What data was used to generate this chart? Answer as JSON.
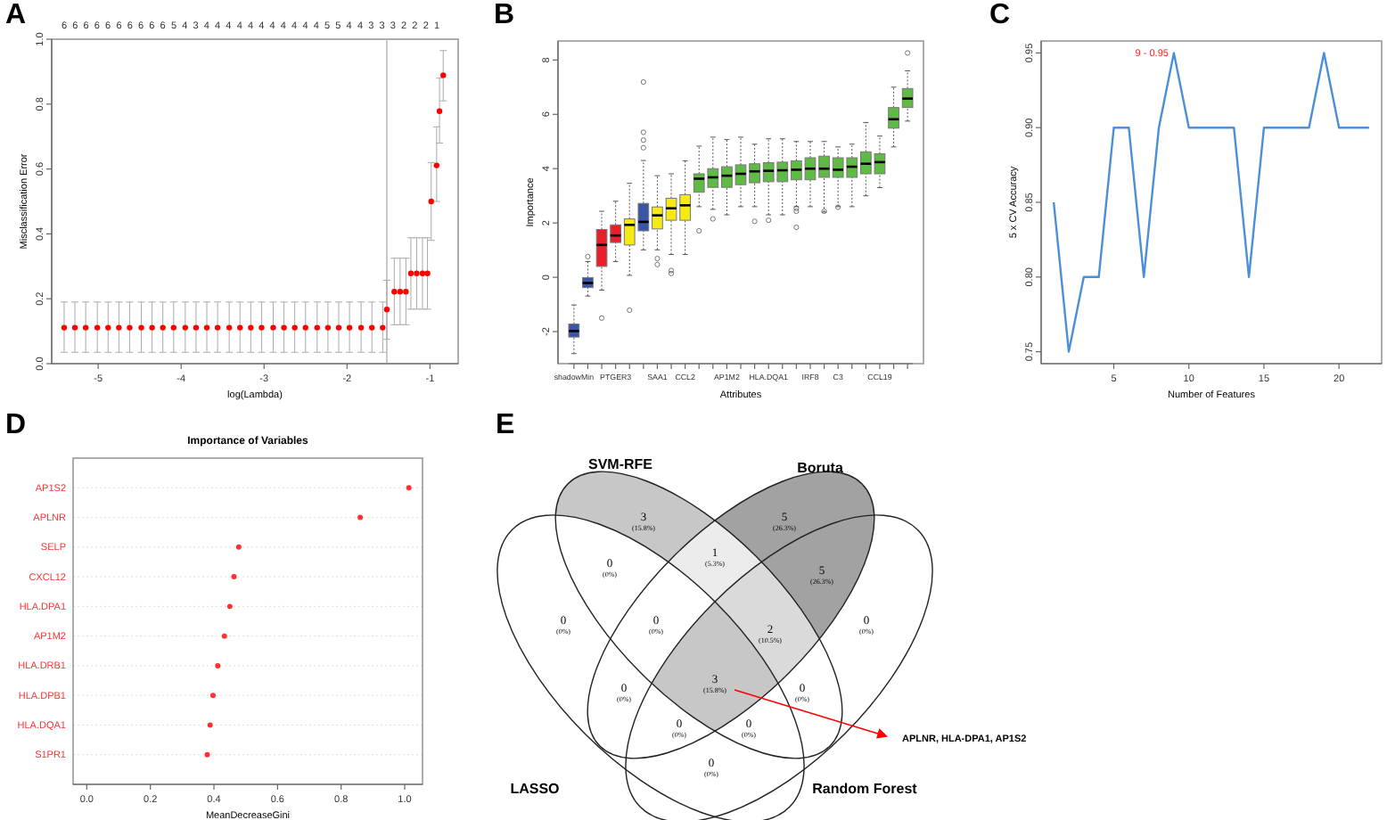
{
  "chart_data": [
    {
      "type": "scatter",
      "annotations": [
        "A",
        "6",
        "6",
        "6",
        "6",
        "6",
        "6",
        "6",
        "6",
        "6",
        "6",
        "5",
        "4",
        "3",
        "4",
        "4",
        "4",
        "4",
        "4",
        "4",
        "4",
        "4",
        "4",
        "4",
        "4",
        "5",
        "5",
        "4",
        "4",
        "3",
        "3",
        "3",
        "2",
        "2",
        "2",
        "1"
      ],
      "xlabel": "log(Lambda)",
      "ylabel": "Misclassification Error",
      "color": "#ff0000",
      "marker": "circle",
      "x": [
        -5.41,
        -5.28,
        -5.15,
        -5.01,
        -4.88,
        -4.75,
        -4.62,
        -4.48,
        -4.35,
        -4.22,
        -4.09,
        -3.95,
        -3.82,
        -3.69,
        -3.56,
        -3.42,
        -3.29,
        -3.16,
        -3.03,
        -2.89,
        -2.76,
        -2.63,
        -2.5,
        -2.36,
        -2.23,
        -2.1,
        -1.97,
        -1.83,
        -1.7,
        -1.57,
        -1.52,
        -1.43,
        -1.36,
        -1.29,
        -1.23,
        -1.16,
        -1.09,
        -1.03,
        -0.985,
        -0.92,
        -0.885,
        -0.84
      ],
      "values": [
        0.111,
        0.111,
        0.111,
        0.111,
        0.111,
        0.111,
        0.111,
        0.111,
        0.111,
        0.111,
        0.111,
        0.111,
        0.111,
        0.111,
        0.111,
        0.111,
        0.111,
        0.111,
        0.111,
        0.111,
        0.111,
        0.111,
        0.111,
        0.111,
        0.111,
        0.111,
        0.111,
        0.111,
        0.111,
        0.111,
        0.167,
        0.222,
        0.222,
        0.222,
        0.278,
        0.278,
        0.278,
        0.278,
        0.5,
        0.611,
        0.778,
        0.889
      ],
      "errors": [
        [
          0.035,
          0.19
        ],
        [
          0.035,
          0.19
        ],
        [
          0.035,
          0.19
        ],
        [
          0.035,
          0.19
        ],
        [
          0.035,
          0.19
        ],
        [
          0.035,
          0.19
        ],
        [
          0.035,
          0.19
        ],
        [
          0.035,
          0.19
        ],
        [
          0.035,
          0.19
        ],
        [
          0.035,
          0.19
        ],
        [
          0.035,
          0.19
        ],
        [
          0.035,
          0.19
        ],
        [
          0.035,
          0.19
        ],
        [
          0.035,
          0.19
        ],
        [
          0.035,
          0.19
        ],
        [
          0.035,
          0.19
        ],
        [
          0.035,
          0.19
        ],
        [
          0.035,
          0.19
        ],
        [
          0.035,
          0.19
        ],
        [
          0.035,
          0.19
        ],
        [
          0.035,
          0.19
        ],
        [
          0.035,
          0.19
        ],
        [
          0.035,
          0.19
        ],
        [
          0.035,
          0.19
        ],
        [
          0.035,
          0.19
        ],
        [
          0.035,
          0.19
        ],
        [
          0.035,
          0.19
        ],
        [
          0.035,
          0.19
        ],
        [
          0.035,
          0.19
        ],
        [
          0.035,
          0.19
        ],
        [
          0.075,
          0.257
        ],
        [
          0.12,
          0.325
        ],
        [
          0.12,
          0.325
        ],
        [
          0.12,
          0.325
        ],
        [
          0.168,
          0.388
        ],
        [
          0.168,
          0.388
        ],
        [
          0.168,
          0.388
        ],
        [
          0.168,
          0.388
        ],
        [
          0.38,
          0.62
        ],
        [
          0.5,
          0.73
        ],
        [
          0.68,
          0.88
        ],
        [
          0.81,
          0.965
        ]
      ],
      "xlim": [
        -5.56,
        -0.66
      ],
      "ylim": [
        0,
        1
      ],
      "xticks": [
        -5,
        -4,
        -3,
        -2,
        -1
      ],
      "yticks": [
        {
          "value": 0,
          "label": "0.0"
        },
        {
          "value": 0.2,
          "label": "0.2"
        },
        {
          "value": 0.4,
          "label": "0.4"
        },
        {
          "value": 0.6,
          "label": "0.6"
        },
        {
          "value": 0.8,
          "label": "0.8"
        },
        {
          "value": 1,
          "label": "1.0"
        }
      ],
      "ref_lines": [
        {
          "axis": "x",
          "value": -1.52,
          "color": "#bbbbbb"
        }
      ]
    },
    {
      "type": "box",
      "annotations": [
        "B"
      ],
      "xlabel": "Attributes",
      "ylabel": "Importance",
      "categories": [
        "shadowMin",
        null,
        null,
        "PTGER3",
        null,
        null,
        "SAA1",
        null,
        "CCL2",
        null,
        null,
        "AP1M2",
        null,
        null,
        "HLA.DQA1",
        null,
        null,
        "IRF8",
        null,
        "C3",
        null,
        null,
        "CCL19",
        null,
        null
      ],
      "colors": [
        "#3a56a6",
        "#3a56a6",
        "#e8202a",
        "#e8202a",
        "#f5ea14",
        "#3a56a6",
        "#f5ea14",
        "#f5ea14",
        "#f5ea14",
        "#5fba46",
        "#5fba46",
        "#5fba46",
        "#5fba46",
        "#5fba46",
        "#5fba46",
        "#5fba46",
        "#5fba46",
        "#5fba46",
        "#5fba46",
        "#5fba46",
        "#5fba46",
        "#5fba46",
        "#5fba46",
        "#5fba46",
        "#5fba46"
      ],
      "boxes": [
        {
          "low": -2.81,
          "q1": -2.2,
          "median": -1.98,
          "q3": -1.72,
          "high": -1.02
        },
        {
          "low": -0.69,
          "q1": -0.38,
          "median": -0.21,
          "q3": -0.01,
          "high": 0.58,
          "outliers": [
            0.76
          ]
        },
        {
          "low": -0.47,
          "q1": 0.4,
          "median": 1.19,
          "q3": 1.76,
          "high": 2.43,
          "outliers": [
            -1.5
          ]
        },
        {
          "low": 0.58,
          "q1": 1.28,
          "median": 1.54,
          "q3": 1.93,
          "high": 2.8
        },
        {
          "low": 0.07,
          "q1": 1.19,
          "median": 1.93,
          "q3": 2.15,
          "high": 3.46,
          "outliers": [
            -1.21
          ]
        },
        {
          "low": 1.01,
          "q1": 1.71,
          "median": 2.04,
          "q3": 2.72,
          "high": 4.3,
          "outliers": [
            4.77,
            5.05,
            5.34,
            7.19
          ]
        },
        {
          "low": 1.01,
          "q1": 1.78,
          "median": 2.28,
          "q3": 2.59,
          "high": 3.74,
          "outliers": [
            0.69,
            0.47
          ]
        },
        {
          "low": 0.84,
          "q1": 2.1,
          "median": 2.54,
          "q3": 2.91,
          "high": 3.81,
          "outliers": [
            0.25,
            0.14
          ]
        },
        {
          "low": 0.84,
          "q1": 2.1,
          "median": 2.65,
          "q3": 3.04,
          "high": 4.29
        },
        {
          "low": 2.6,
          "q1": 3.13,
          "median": 3.63,
          "q3": 3.81,
          "high": 4.83,
          "outliers": [
            1.71
          ]
        },
        {
          "low": 2.5,
          "q1": 3.31,
          "median": 3.68,
          "q3": 4.0,
          "high": 5.16,
          "outliers": [
            2.15
          ]
        },
        {
          "low": 2.3,
          "q1": 3.31,
          "median": 3.74,
          "q3": 4.07,
          "high": 5.07
        },
        {
          "low": 2.6,
          "q1": 3.41,
          "median": 3.81,
          "q3": 4.14,
          "high": 5.16
        },
        {
          "low": 2.6,
          "q1": 3.48,
          "median": 3.9,
          "q3": 4.18,
          "high": 4.9,
          "outliers": [
            2.06
          ]
        },
        {
          "low": 2.3,
          "q1": 3.52,
          "median": 3.92,
          "q3": 4.22,
          "high": 5.1,
          "outliers": [
            2.1
          ]
        },
        {
          "low": 2.3,
          "q1": 3.52,
          "median": 3.94,
          "q3": 4.24,
          "high": 5.1
        },
        {
          "low": 2.6,
          "q1": 3.59,
          "median": 3.96,
          "q3": 4.29,
          "high": 5.0,
          "outliers": [
            2.54,
            2.43,
            1.84
          ]
        },
        {
          "low": 2.6,
          "q1": 3.59,
          "median": 4.0,
          "q3": 4.4,
          "high": 5.0
        },
        {
          "low": 2.4,
          "q1": 3.68,
          "median": 4.0,
          "q3": 4.46,
          "high": 5.0,
          "outliers": [
            2.43
          ]
        },
        {
          "low": 2.6,
          "q1": 3.68,
          "median": 3.96,
          "q3": 4.4,
          "high": 4.8,
          "outliers": [
            2.58
          ]
        },
        {
          "low": 2.6,
          "q1": 3.68,
          "median": 4.07,
          "q3": 4.4,
          "high": 4.9
        },
        {
          "low": 3.0,
          "q1": 3.81,
          "median": 4.18,
          "q3": 4.62,
          "high": 5.7
        },
        {
          "low": 3.3,
          "q1": 3.81,
          "median": 4.24,
          "q3": 4.55,
          "high": 5.2
        },
        {
          "low": 4.8,
          "q1": 5.49,
          "median": 5.82,
          "q3": 6.25,
          "high": 7.0
        },
        {
          "low": 5.75,
          "q1": 6.25,
          "median": 6.58,
          "q3": 6.95,
          "high": 7.6,
          "outliers": [
            8.26
          ]
        }
      ],
      "ylim": [
        -3.18,
        8.7
      ],
      "yticks": [
        -2,
        0,
        2,
        4,
        6,
        8
      ]
    },
    {
      "type": "line",
      "annotations": [
        "C",
        {
          "text": "9 - 0.95",
          "x": 9,
          "y": 0.95
        }
      ],
      "xlabel": "Number of Features",
      "ylabel": "5 x CV Accuracy",
      "color": "#4a8fd8",
      "x": [
        1,
        2,
        3,
        4,
        5,
        6,
        7,
        8,
        9,
        10,
        11,
        12,
        13,
        14,
        15,
        16,
        17,
        18,
        19,
        20,
        21,
        22
      ],
      "values": [
        0.85,
        0.75,
        0.8,
        0.8,
        0.9,
        0.9,
        0.8,
        0.9,
        0.95,
        0.9,
        0.9,
        0.9,
        0.9,
        0.8,
        0.9,
        0.9,
        0.9,
        0.9,
        0.95,
        0.9,
        0.9,
        0.9
      ],
      "xlim": [
        0.16,
        22.84
      ],
      "ylim": [
        0.742,
        0.958
      ],
      "xticks": [
        5,
        10,
        15,
        20
      ],
      "yticks": [
        {
          "value": 0.75,
          "label": "0.75"
        },
        {
          "value": 0.8,
          "label": "0.80"
        },
        {
          "value": 0.85,
          "label": "0.85"
        },
        {
          "value": 0.9,
          "label": "0.90"
        },
        {
          "value": 0.95,
          "label": "0.95"
        }
      ]
    },
    {
      "type": "scatter",
      "orientation": "horizontal",
      "annotations": [
        "D"
      ],
      "title": "Importance of Variables",
      "xlabel": "MeanDecreaseGini",
      "color": "#ff3030",
      "marker": "circle",
      "grid": "y",
      "categories": [
        "AP1S2",
        "APLNR",
        "SELP",
        "CXCL12",
        "HLA.DPA1",
        "AP1M2",
        "HLA.DRB1",
        "HLA.DPB1",
        "HLA.DQA1",
        "S1PR1"
      ],
      "values": [
        1.013,
        0.86,
        0.478,
        0.463,
        0.45,
        0.433,
        0.412,
        0.397,
        0.388,
        0.379
      ],
      "xlim": [
        -0.043,
        1.056
      ],
      "xticks": [
        {
          "value": 0,
          "label": "0.0"
        },
        {
          "value": 0.2,
          "label": "0.2"
        },
        {
          "value": 0.4,
          "label": "0.4"
        },
        {
          "value": 0.6,
          "label": "0.6"
        },
        {
          "value": 0.8,
          "label": "0.8"
        },
        {
          "value": 1,
          "label": "1.0"
        }
      ]
    },
    {
      "type": "other",
      "annotations": [
        "E",
        "SVM-RFE",
        "Boruta",
        "LASSO",
        "Random Forest",
        {
          "text": "APLNR, HLA-DPA1, AP1S2"
        }
      ],
      "categories": [
        "3",
        "5",
        "0",
        "1",
        "5",
        "0",
        "0",
        "0",
        "2",
        "3",
        "0",
        "0",
        "0",
        "0",
        "0"
      ],
      "values": [
        15.8,
        26.3,
        0,
        5.3,
        26.3,
        0,
        0,
        0,
        10.5,
        15.8,
        0,
        0,
        0,
        0,
        0
      ],
      "value_labels": [
        "(15.8%)",
        "(26.3%)",
        "(0%)",
        "(5.3%)",
        "(26.3%)",
        "(0%)",
        "(0%)",
        "(0%)",
        "(10.5%)",
        "(15.8%)",
        "(0%)",
        "(0%)",
        "(0%)",
        "(0%)",
        "(0%)"
      ]
    }
  ]
}
